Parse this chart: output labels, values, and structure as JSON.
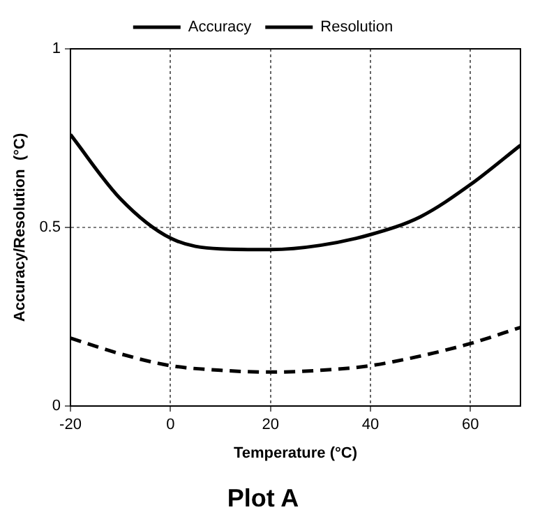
{
  "chart_data": {
    "type": "line",
    "title": "Plot A",
    "xlabel": "Temperature (°C)",
    "ylabel": "Accuracy/Resolution  (°C)",
    "x": [
      -20,
      -10,
      0,
      10,
      20,
      30,
      40,
      50,
      60,
      70
    ],
    "series": [
      {
        "name": "Accuracy",
        "color": "#000000",
        "line_style": "solid",
        "values": [
          0.76,
          0.58,
          0.47,
          0.44,
          0.438,
          0.45,
          0.48,
          0.53,
          0.62,
          0.73
        ]
      },
      {
        "name": "Resolution",
        "color": "#000000",
        "line_style": "dashed",
        "values": [
          0.19,
          0.146,
          0.113,
          0.1,
          0.095,
          0.1,
          0.113,
          0.14,
          0.175,
          0.22
        ]
      }
    ],
    "xlim": [
      -20,
      70
    ],
    "xticks": [
      -20,
      0,
      20,
      40,
      60
    ],
    "ylim": [
      0,
      1
    ],
    "yticks": [
      0,
      0.5,
      1
    ],
    "grid": true,
    "legend": "top",
    "marker": "none"
  }
}
